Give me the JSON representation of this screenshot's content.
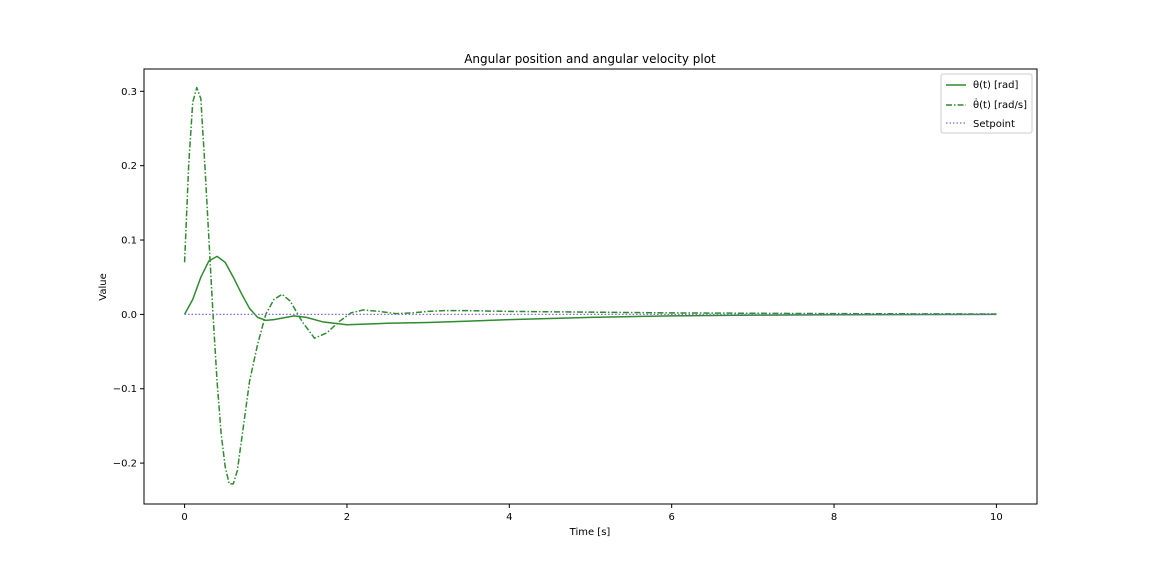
{
  "chart_data": {
    "type": "line",
    "title": "Angular position and angular velocity plot",
    "xlabel": "Time [s]",
    "ylabel": "Value",
    "xlim": [
      -0.5,
      10.5
    ],
    "ylim": [
      -0.255,
      0.33
    ],
    "x_ticks": [
      0,
      2,
      4,
      6,
      8,
      10
    ],
    "x_tick_labels": [
      "0",
      "2",
      "4",
      "6",
      "8",
      "10"
    ],
    "y_ticks": [
      0.3,
      0.2,
      0.1,
      0.0,
      -0.1,
      -0.2
    ],
    "y_tick_labels": [
      "0.3",
      "0.2",
      "0.1",
      "0.0",
      "−0.1",
      "−0.2"
    ],
    "grid": false,
    "legend_position": "top-right",
    "series": [
      {
        "name": "θ(t) [rad]",
        "color": "#2e8b2e",
        "line_style": "solid",
        "x": [
          0,
          0.1,
          0.2,
          0.3,
          0.4,
          0.5,
          0.6,
          0.7,
          0.8,
          0.9,
          1.0,
          1.1,
          1.2,
          1.35,
          1.5,
          1.7,
          2.0,
          2.5,
          3.0,
          3.5,
          4.0,
          5.0,
          6.0,
          7.0,
          8.0,
          10.0
        ],
        "y": [
          0,
          0.02,
          0.05,
          0.072,
          0.078,
          0.07,
          0.05,
          0.028,
          0.008,
          -0.004,
          -0.008,
          -0.007,
          -0.005,
          -0.002,
          -0.004,
          -0.01,
          -0.014,
          -0.012,
          -0.011,
          -0.009,
          -0.007,
          -0.004,
          -0.002,
          -0.001,
          -0.0005,
          0
        ]
      },
      {
        "name": "θ̇(t) [rad/s]",
        "color": "#2e8b2e",
        "line_style": "dashdot",
        "x": [
          0,
          0.05,
          0.1,
          0.15,
          0.2,
          0.25,
          0.3,
          0.35,
          0.4,
          0.45,
          0.5,
          0.55,
          0.6,
          0.65,
          0.7,
          0.75,
          0.8,
          0.9,
          1.0,
          1.1,
          1.2,
          1.3,
          1.45,
          1.6,
          1.75,
          1.9,
          2.05,
          2.2,
          2.4,
          2.6,
          2.8,
          3.0,
          3.2,
          3.5,
          4.0,
          5.0,
          6.0,
          7.0,
          8.0,
          10.0
        ],
        "y": [
          0.07,
          0.2,
          0.285,
          0.305,
          0.29,
          0.2,
          0.1,
          0.0,
          -0.09,
          -0.16,
          -0.205,
          -0.228,
          -0.228,
          -0.21,
          -0.17,
          -0.13,
          -0.09,
          -0.04,
          0.0,
          0.02,
          0.027,
          0.018,
          -0.01,
          -0.032,
          -0.025,
          -0.01,
          0.002,
          0.006,
          0.004,
          0.001,
          0.002,
          0.004,
          0.005,
          0.005,
          0.004,
          0.003,
          0.002,
          0.0015,
          0.001,
          0.0005
        ]
      },
      {
        "name": "Setpoint",
        "color": "#7b68ee",
        "line_style": "dotted",
        "x": [
          0,
          10
        ],
        "y": [
          0,
          0
        ]
      }
    ]
  }
}
